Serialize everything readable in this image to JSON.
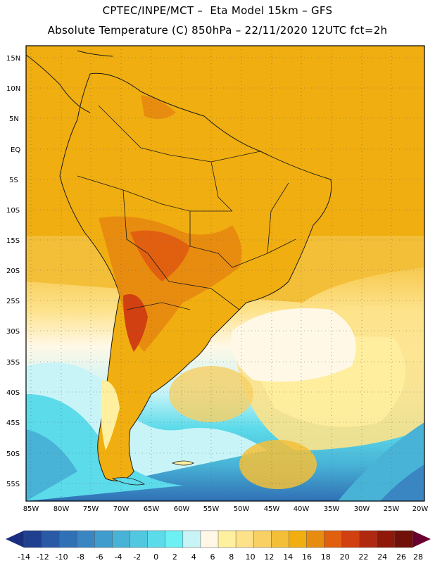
{
  "header": {
    "line1": "CPTEC/INPE/MCT –  Eta Model 15km – GFS",
    "line2": "Absolute Temperature (C) 850hPa – 22/11/2020 12UTC fct=2h"
  },
  "map": {
    "lat_labels": [
      "15N",
      "10N",
      "5N",
      "EQ",
      "5S",
      "10S",
      "15S",
      "20S",
      "25S",
      "30S",
      "35S",
      "40S",
      "45S",
      "50S",
      "55S"
    ],
    "lon_labels": [
      "85W",
      "80W",
      "75W",
      "70W",
      "65W",
      "60W",
      "55W",
      "50W",
      "45W",
      "40W",
      "35W",
      "30W",
      "25W",
      "20W"
    ]
  },
  "colorbar": {
    "labels": [
      "-14",
      "-12",
      "-10",
      "-8",
      "-6",
      "-4",
      "-2",
      "0",
      "2",
      "4",
      "6",
      "8",
      "10",
      "12",
      "14",
      "16",
      "18",
      "20",
      "22",
      "24",
      "26",
      "28"
    ],
    "colors": [
      "#1f3f8f",
      "#2a5aa5",
      "#3070b5",
      "#3a86c2",
      "#3f9ccc",
      "#48b3d6",
      "#52c7e0",
      "#5cdbea",
      "#6cf0f4",
      "#c8f4f8",
      "#fff8e6",
      "#fff0a0",
      "#fde28a",
      "#f8d064",
      "#f4bf38",
      "#f0ae10",
      "#e88c10",
      "#e06010",
      "#d04010",
      "#b02810",
      "#901808",
      "#701008"
    ],
    "low_arrow_color": "#1a2e80",
    "high_arrow_color": "#6a0030"
  }
}
